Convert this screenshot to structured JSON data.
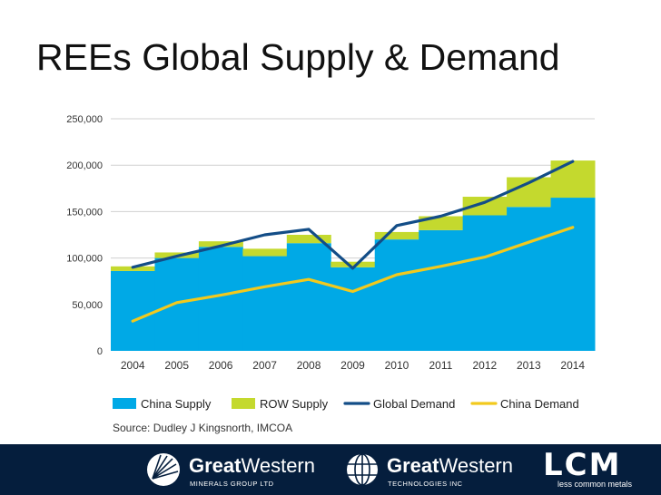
{
  "slide_title": "REEs Global Supply & Demand",
  "chart_data": {
    "type": "stacked-area-step-with-lines",
    "title": "",
    "xlabel": "",
    "ylabel": "",
    "ylim": [
      0,
      250000
    ],
    "yticks": [
      0,
      50000,
      100000,
      150000,
      200000,
      250000
    ],
    "ytick_labels": [
      "0",
      "50,000",
      "100,000",
      "150,000",
      "200,000",
      "250,000"
    ],
    "categories": [
      "2004",
      "2005",
      "2006",
      "2007",
      "2008",
      "2009",
      "2010",
      "2011",
      "2012",
      "2013",
      "2014"
    ],
    "series": [
      {
        "name": "China Supply",
        "kind": "stacked-step-area",
        "color": "#00a9e6",
        "values": [
          86000,
          100000,
          112000,
          102000,
          116000,
          90000,
          120000,
          130000,
          146000,
          155000,
          165000
        ]
      },
      {
        "name": "ROW Supply",
        "kind": "stacked-step-area",
        "color": "#c4d92e",
        "values": [
          5000,
          6000,
          6000,
          8000,
          9000,
          6000,
          8000,
          15000,
          20000,
          32000,
          40000
        ]
      },
      {
        "name": "Global Demand",
        "kind": "line",
        "color": "#134d87",
        "values": [
          90000,
          102000,
          113000,
          125000,
          131000,
          89000,
          135000,
          145000,
          160000,
          181000,
          204000
        ]
      },
      {
        "name": "China Demand",
        "kind": "line",
        "color": "#f2c91d",
        "values": [
          32000,
          52000,
          60000,
          69000,
          77000,
          64000,
          82000,
          91000,
          101000,
          117000,
          133000
        ]
      }
    ],
    "legend": [
      "China Supply",
      "ROW Supply",
      "Global Demand",
      "China Demand"
    ],
    "legend_position": "bottom",
    "grid": true,
    "source": "Source: Dudley J Kingsnorth, IMCOA"
  },
  "footer": {
    "logo1": {
      "name_bold": "Great",
      "name_rest": "Western",
      "sub": "MINERALS GROUP LTD",
      "icon": "starburst-icon"
    },
    "logo2": {
      "name_bold": "Great",
      "name_rest": "Western",
      "sub": "TECHNOLOGIES INC",
      "icon": "globe-icon"
    },
    "logo3": {
      "mark": "LCM",
      "sub": "less common metals"
    },
    "background": "#051e3d"
  }
}
